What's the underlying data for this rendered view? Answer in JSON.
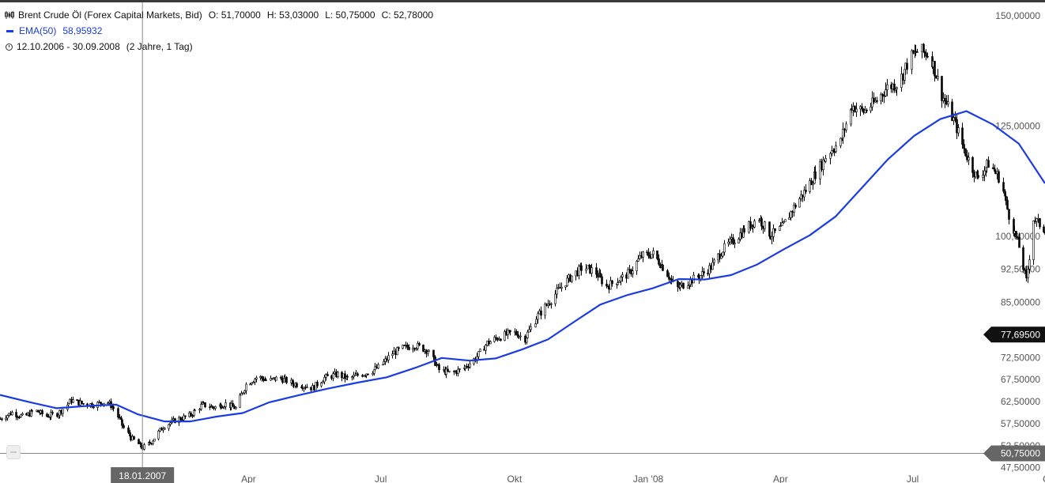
{
  "legend": {
    "title": "Brent Crude Öl (Forex Capital Markets, Bid)",
    "open": "O: 51,70000",
    "high": "H: 53,03000",
    "low": "L: 50,75000",
    "close": "C: 52,78000",
    "ema_label": "EMA(50)",
    "ema_value": "58,95932",
    "range": "12.10.2006 - 30.09.2008",
    "duration": "(2 Jahre, 1 Tag)"
  },
  "colors": {
    "ema": "#1a3ce0",
    "candle": "#000000",
    "crosshair": "#888888",
    "tag_dark": "#111111",
    "tag_grey": "#666666"
  },
  "chart_data": {
    "type": "candlestick",
    "title": "Brent Crude Öl (Forex Capital Markets, Bid)",
    "ylim": [
      46,
      152
    ],
    "y_ticks": [
      {
        "value": 150,
        "label": "150,00000"
      },
      {
        "value": 125,
        "label": "125,00000"
      },
      {
        "value": 100,
        "label": "100,00000"
      },
      {
        "value": 92.5,
        "label": "92,50000"
      },
      {
        "value": 85,
        "label": "85,00000"
      },
      {
        "value": 72.5,
        "label": "72,50000"
      },
      {
        "value": 67.5,
        "label": "67,50000"
      },
      {
        "value": 62.5,
        "label": "62,50000"
      },
      {
        "value": 57.5,
        "label": "57,50000"
      },
      {
        "value": 52.5,
        "label": "52,50000"
      },
      {
        "value": 47.5,
        "label": "47,50000"
      }
    ],
    "x_ticks": [
      {
        "date": "2007-01-01",
        "label": "Ja"
      },
      {
        "date": "2007-04-01",
        "label": "Apr"
      },
      {
        "date": "2007-07-01",
        "label": "Jul"
      },
      {
        "date": "2007-10-01",
        "label": "Okt"
      },
      {
        "date": "2008-01-01",
        "label": "Jan '08"
      },
      {
        "date": "2008-04-01",
        "label": "Apr"
      },
      {
        "date": "2008-07-01",
        "label": "Jul"
      },
      {
        "date": "2008-10-01",
        "label": "O"
      }
    ],
    "x_start": "2006-10-12",
    "x_end": "2008-09-30",
    "close_points": [
      [
        "2006-10-12",
        58.6
      ],
      [
        "2006-10-20",
        60.0
      ],
      [
        "2006-10-28",
        59.0
      ],
      [
        "2006-11-05",
        60.5
      ],
      [
        "2006-11-13",
        59.2
      ],
      [
        "2006-11-21",
        59.8
      ],
      [
        "2006-11-30",
        62.8
      ],
      [
        "2006-12-08",
        62.0
      ],
      [
        "2006-12-16",
        61.8
      ],
      [
        "2006-12-24",
        62.6
      ],
      [
        "2006-12-29",
        61.0
      ],
      [
        "2007-01-05",
        56.5
      ],
      [
        "2007-01-10",
        54.3
      ],
      [
        "2007-01-18",
        52.0
      ],
      [
        "2007-01-24",
        53.4
      ],
      [
        "2007-02-01",
        56.8
      ],
      [
        "2007-02-10",
        58.4
      ],
      [
        "2007-02-19",
        59.3
      ],
      [
        "2007-02-28",
        61.8
      ],
      [
        "2007-03-08",
        61.2
      ],
      [
        "2007-03-16",
        62.0
      ],
      [
        "2007-03-23",
        61.0
      ],
      [
        "2007-03-30",
        66.4
      ],
      [
        "2007-04-07",
        68.2
      ],
      [
        "2007-04-14",
        67.2
      ],
      [
        "2007-04-22",
        67.9
      ],
      [
        "2007-05-01",
        66.6
      ],
      [
        "2007-05-08",
        66.2
      ],
      [
        "2007-05-15",
        65.6
      ],
      [
        "2007-05-23",
        67.9
      ],
      [
        "2007-06-01",
        68.7
      ],
      [
        "2007-06-08",
        67.7
      ],
      [
        "2007-06-15",
        68.5
      ],
      [
        "2007-06-23",
        69.2
      ],
      [
        "2007-07-01",
        70.6
      ],
      [
        "2007-07-08",
        73.3
      ],
      [
        "2007-07-16",
        74.6
      ],
      [
        "2007-07-24",
        75.3
      ],
      [
        "2007-08-02",
        74.1
      ],
      [
        "2007-08-10",
        69.7
      ],
      [
        "2007-08-18",
        68.9
      ],
      [
        "2007-08-26",
        69.9
      ],
      [
        "2007-09-04",
        72.3
      ],
      [
        "2007-09-12",
        75.8
      ],
      [
        "2007-09-20",
        77.1
      ],
      [
        "2007-09-30",
        78.3
      ],
      [
        "2007-10-08",
        76.8
      ],
      [
        "2007-10-16",
        81.6
      ],
      [
        "2007-10-24",
        84.8
      ],
      [
        "2007-11-01",
        88.2
      ],
      [
        "2007-11-09",
        91.0
      ],
      [
        "2007-11-17",
        93.0
      ],
      [
        "2007-11-25",
        92.1
      ],
      [
        "2007-12-03",
        88.6
      ],
      [
        "2007-12-11",
        90.0
      ],
      [
        "2007-12-19",
        91.7
      ],
      [
        "2007-12-27",
        95.5
      ],
      [
        "2008-01-04",
        96.0
      ],
      [
        "2008-01-12",
        92.6
      ],
      [
        "2008-01-20",
        88.0
      ],
      [
        "2008-01-28",
        89.7
      ],
      [
        "2008-02-05",
        90.9
      ],
      [
        "2008-02-13",
        93.0
      ],
      [
        "2008-02-21",
        97.0
      ],
      [
        "2008-03-01",
        99.6
      ],
      [
        "2008-03-09",
        102.1
      ],
      [
        "2008-03-17",
        104.2
      ],
      [
        "2008-03-25",
        100.2
      ],
      [
        "2008-04-02",
        102.0
      ],
      [
        "2008-04-10",
        106.6
      ],
      [
        "2008-04-18",
        110.5
      ],
      [
        "2008-04-26",
        114.8
      ],
      [
        "2008-05-04",
        119.1
      ],
      [
        "2008-05-12",
        121.4
      ],
      [
        "2008-05-20",
        129.6
      ],
      [
        "2008-05-28",
        128.3
      ],
      [
        "2008-06-05",
        130.5
      ],
      [
        "2008-06-13",
        133.8
      ],
      [
        "2008-06-21",
        134.7
      ],
      [
        "2008-06-29",
        140.5
      ],
      [
        "2008-07-05",
        142.3
      ],
      [
        "2008-07-13",
        141.1
      ],
      [
        "2008-07-21",
        132.1
      ],
      [
        "2008-07-29",
        126.4
      ],
      [
        "2008-08-06",
        118.9
      ],
      [
        "2008-08-14",
        113.2
      ],
      [
        "2008-08-22",
        116.5
      ],
      [
        "2008-08-30",
        113.0
      ],
      [
        "2008-09-05",
        104.8
      ],
      [
        "2008-09-12",
        97.6
      ],
      [
        "2008-09-17",
        89.8
      ],
      [
        "2008-09-22",
        104.0
      ],
      [
        "2008-09-30",
        101.4
      ]
    ],
    "ema_points": [
      [
        "2006-10-12",
        64.0
      ],
      [
        "2006-11-01",
        62.4
      ],
      [
        "2006-11-20",
        61.0
      ],
      [
        "2006-12-10",
        61.5
      ],
      [
        "2006-12-31",
        61.8
      ],
      [
        "2007-01-15",
        59.6
      ],
      [
        "2007-02-02",
        58.0
      ],
      [
        "2007-02-20",
        58.0
      ],
      [
        "2007-03-10",
        59.1
      ],
      [
        "2007-03-28",
        59.9
      ],
      [
        "2007-04-15",
        62.3
      ],
      [
        "2007-05-05",
        63.9
      ],
      [
        "2007-05-25",
        65.4
      ],
      [
        "2007-06-15",
        66.8
      ],
      [
        "2007-07-05",
        68.0
      ],
      [
        "2007-07-25",
        70.2
      ],
      [
        "2007-08-12",
        72.4
      ],
      [
        "2007-08-31",
        71.8
      ],
      [
        "2007-09-18",
        72.3
      ],
      [
        "2007-10-06",
        74.3
      ],
      [
        "2007-10-24",
        76.6
      ],
      [
        "2007-11-11",
        80.6
      ],
      [
        "2007-11-29",
        84.5
      ],
      [
        "2007-12-17",
        86.6
      ],
      [
        "2008-01-04",
        88.2
      ],
      [
        "2008-01-22",
        90.3
      ],
      [
        "2008-02-09",
        90.2
      ],
      [
        "2008-02-27",
        91.2
      ],
      [
        "2008-03-16",
        93.6
      ],
      [
        "2008-04-03",
        97.0
      ],
      [
        "2008-04-21",
        100.2
      ],
      [
        "2008-05-09",
        104.5
      ],
      [
        "2008-05-27",
        111.0
      ],
      [
        "2008-06-14",
        117.5
      ],
      [
        "2008-07-02",
        122.8
      ],
      [
        "2008-07-20",
        126.6
      ],
      [
        "2008-08-07",
        128.4
      ],
      [
        "2008-08-25",
        125.4
      ],
      [
        "2008-09-12",
        121.0
      ],
      [
        "2008-09-30",
        112.0
      ]
    ],
    "crosshair": {
      "date": "2007-01-18",
      "price": 50.75,
      "date_label": "18.01.2007",
      "price_label": "50,75000"
    },
    "last_price": {
      "value": 77.695,
      "label": "77,69500"
    },
    "legend_placement": "top-left",
    "grid": false
  }
}
